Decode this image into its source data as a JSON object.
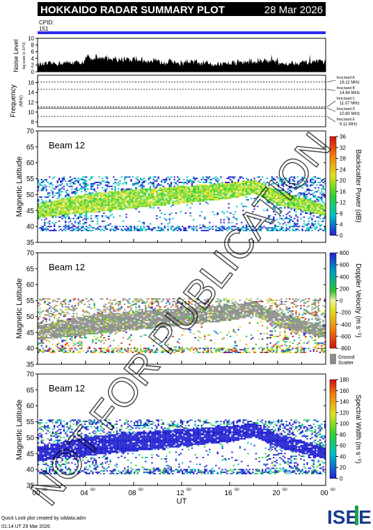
{
  "header": {
    "title": "HOKKAIDO RADAR SUMMARY PLOT",
    "date": "28 Mar 2026"
  },
  "cpid": {
    "label": "CPID:",
    "value": "151"
  },
  "noise_panel": {
    "ylabel": "Noise Level",
    "ylabel_sub": "log scale (x 10^2)",
    "yticks": [
      "0",
      "2",
      "4",
      "6",
      "8",
      "10"
    ]
  },
  "freq_panel": {
    "ylabel": "Frequency",
    "ylabel_unit": "(MHz)",
    "yticks": [
      "8",
      "10",
      "12",
      "14",
      "16"
    ],
    "bands": [
      {
        "label": "freq band A",
        "value": "16.11 MHz",
        "freq": 16.11
      },
      {
        "label": "freq band B",
        "value": "14.64 MHz",
        "freq": 14.64
      },
      {
        "label": "freq band C",
        "value": "11.07 MHz",
        "freq": 11.07
      },
      {
        "label": "freq band D",
        "value": "10.80 MHz",
        "freq": 10.8
      },
      {
        "label": "freq band E",
        "value": "9.11 MHz",
        "freq": 9.11
      }
    ]
  },
  "panels": [
    {
      "beam": "Beam 12",
      "ylabel": "Magnetic Latitude",
      "cbar_label": "Backscatter Power (dB)",
      "cbar_ticks": [
        "0",
        "4",
        "8",
        "12",
        "16",
        "20",
        "24",
        "28",
        "32",
        "36"
      ],
      "kind": "power"
    },
    {
      "beam": "Beam 12",
      "ylabel": "Magnetic Latitude",
      "cbar_label": "Doppler Velocity (m s⁻¹)",
      "cbar_ticks": [
        "-800",
        "-600",
        "-400",
        "-200",
        "0",
        "200",
        "400",
        "600",
        "800"
      ],
      "ground_label": "Ground",
      "ground_label2": "Scatter",
      "kind": "velocity"
    },
    {
      "beam": "Beam 12",
      "ylabel": "Magnetic Latitude",
      "cbar_label": "Spectral Width (m s⁻¹)",
      "cbar_ticks": [
        "0",
        "20",
        "40",
        "60",
        "80",
        "100",
        "120",
        "140",
        "160",
        "180"
      ],
      "kind": "width"
    }
  ],
  "lat_ticks": [
    "35",
    "40",
    "45",
    "50",
    "55",
    "60",
    "65",
    "70"
  ],
  "x_ticks": [
    "00",
    "04",
    "08",
    "12",
    "16",
    "20",
    "00"
  ],
  "x_tick_sup": "00",
  "xlabel": "UT",
  "footer": {
    "line1": "Quick Look plot created by sddata.adm",
    "line2": "01:14 UT 29 Mar 2026",
    "logo": "ISEE"
  },
  "watermark": "NOT FOR PUBLICATION",
  "colors": {
    "cpid_bar": "#2a2af0",
    "ground_scatter": "#8c8c8c",
    "title_bg": "#000000"
  },
  "chart_data": {
    "type": "heatmap",
    "x_range_ut_hours": [
      0,
      24
    ],
    "y_range_mlat": [
      35,
      70
    ],
    "noise_ylim": [
      0,
      10
    ],
    "freq_ylim": [
      7,
      17.5
    ],
    "echo_band": [
      {
        "ut": 0,
        "lower": 42.5,
        "upper": 47
      },
      {
        "ut": 4,
        "lower": 44,
        "upper": 50
      },
      {
        "ut": 8,
        "lower": 45.5,
        "upper": 51.5
      },
      {
        "ut": 12,
        "lower": 47,
        "upper": 52.5
      },
      {
        "ut": 16,
        "lower": 48.5,
        "upper": 53.5
      },
      {
        "ut": 18,
        "lower": 50,
        "upper": 54.5
      },
      {
        "ut": 20,
        "lower": 46.5,
        "upper": 51
      },
      {
        "ut": 24,
        "lower": 43,
        "upper": 46.5
      }
    ]
  }
}
